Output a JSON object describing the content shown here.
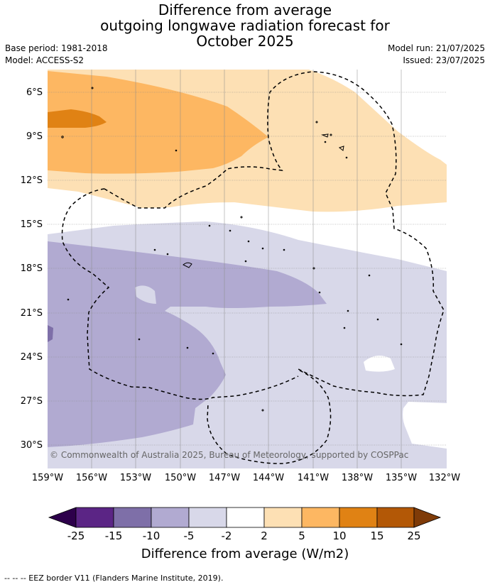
{
  "title": {
    "line1": "Difference from average",
    "line2": "outgoing longwave radiation forecast for",
    "line3": "October 2025"
  },
  "meta": {
    "base_period": "Base period: 1981-2018",
    "model": "Model: ACCESS-S2",
    "model_run": "Model run: 21/07/2025",
    "issued": "Issued: 23/07/2025"
  },
  "map": {
    "latitude_labels": [
      "6°S",
      "9°S",
      "12°S",
      "15°S",
      "18°S",
      "21°S",
      "24°S",
      "27°S",
      "30°S"
    ],
    "longitude_labels": [
      "159°W",
      "156°W",
      "153°W",
      "150°W",
      "147°W",
      "144°W",
      "141°W",
      "138°W",
      "135°W",
      "132°W"
    ],
    "copyright": "© Commonwealth of Australia 2025, Bureau of Meteorology, supported by COSPPac"
  },
  "colorbar": {
    "ticks": [
      "-25",
      "-15",
      "-10",
      "-5",
      "-2",
      "2",
      "5",
      "10",
      "15",
      "25"
    ],
    "colors": [
      "#5b2585",
      "#7e6fa8",
      "#b1aad1",
      "#d8d8e9",
      "#ffffff",
      "#fde0b4",
      "#fdb762",
      "#e08214",
      "#b35806"
    ],
    "under_color": "#2d004b",
    "over_color": "#7f3b08",
    "title": "Difference from average (W/m2)"
  },
  "footer": "--  --  -- EEZ border V11 (Flanders Marine Institute, 2019)."
}
